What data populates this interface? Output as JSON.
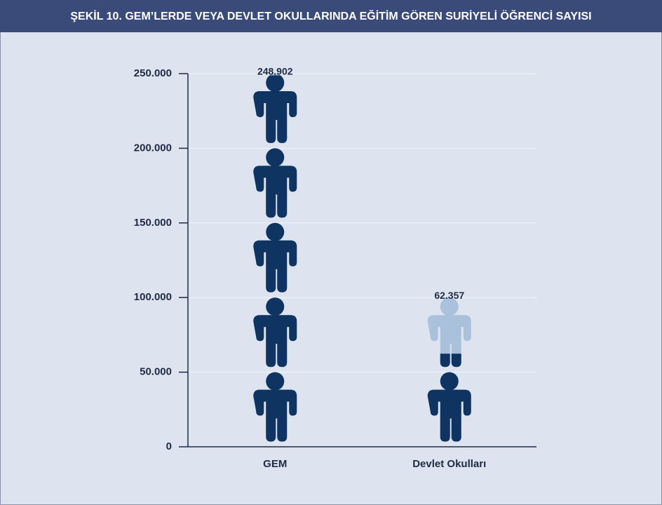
{
  "chart_data": {
    "type": "pictogram",
    "title": "ŞEKİL 10. GEM’LERDE VEYA DEVLET OKULLARINDA EĞİTİM GÖREN SURİYELİ ÖĞRENCİ SAYISI",
    "categories": [
      "GEM",
      "Devlet Okulları"
    ],
    "values": [
      248902,
      62357
    ],
    "value_labels": [
      "248.902",
      "62.357"
    ],
    "color": "#0f3461",
    "empty_color": "#a9c1db",
    "ylim": [
      0,
      250000
    ],
    "yticks": [
      0,
      {
        "value": 50000,
        "label": "50.000"
      },
      {
        "value": 100000,
        "label": "100.000"
      },
      {
        "value": 150000,
        "label": "150.000"
      },
      {
        "value": 200000,
        "label": "200.000"
      },
      {
        "value": 250000,
        "label": "250.000"
      }
    ],
    "grid": true
  }
}
